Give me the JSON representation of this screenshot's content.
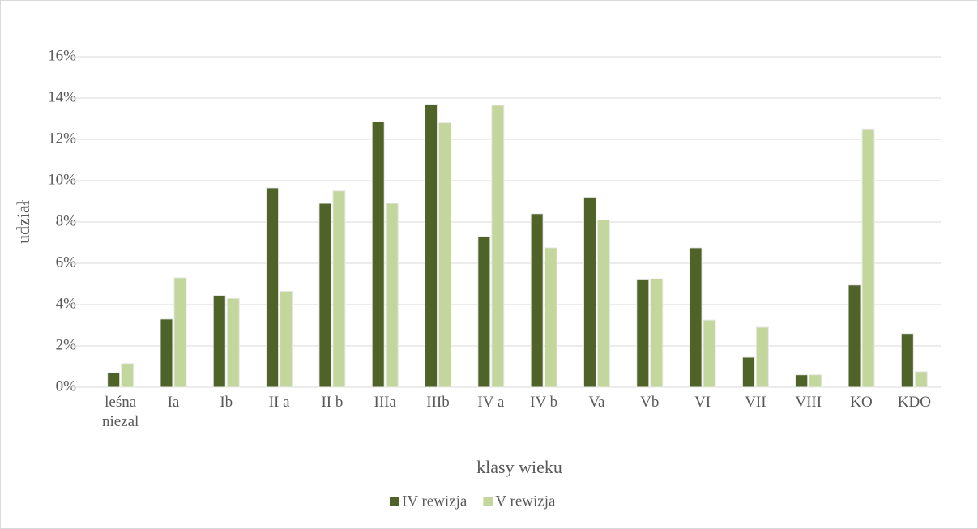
{
  "chart_data": {
    "type": "bar",
    "y_label": "udział",
    "x_label": "klasy wieku",
    "categories": [
      "leśna niezal",
      "Ia",
      "Ib",
      "II a",
      "II b",
      "IIIa",
      "IIIb",
      "IV a",
      "IV b",
      "Va",
      "Vb",
      "VI",
      "VII",
      "VIII",
      "KO",
      "KDO"
    ],
    "series": [
      {
        "name": "IV rewizja",
        "color": "#4f6228",
        "values": [
          0.7,
          3.3,
          4.45,
          9.65,
          8.9,
          12.85,
          13.7,
          7.3,
          8.4,
          9.2,
          5.2,
          6.75,
          1.45,
          0.6,
          4.95,
          2.6
        ]
      },
      {
        "name": "V rewizja",
        "color": "#c3d69b",
        "values": [
          1.15,
          5.3,
          4.3,
          4.65,
          9.5,
          8.9,
          12.8,
          13.65,
          6.75,
          8.1,
          5.25,
          3.25,
          2.9,
          0.6,
          12.5,
          0.75
        ]
      }
    ],
    "ylim": [
      0,
      16
    ],
    "yticks": [
      {
        "value": 0,
        "label": "0%"
      },
      {
        "value": 2,
        "label": "2%"
      },
      {
        "value": 4,
        "label": "4%"
      },
      {
        "value": 6,
        "label": "6%"
      },
      {
        "value": 8,
        "label": "8%"
      },
      {
        "value": 10,
        "label": "10%"
      },
      {
        "value": 12,
        "label": "12%"
      },
      {
        "value": 14,
        "label": "14%"
      },
      {
        "value": 16,
        "label": "16%"
      }
    ],
    "grid": true,
    "legend": "bottom"
  }
}
